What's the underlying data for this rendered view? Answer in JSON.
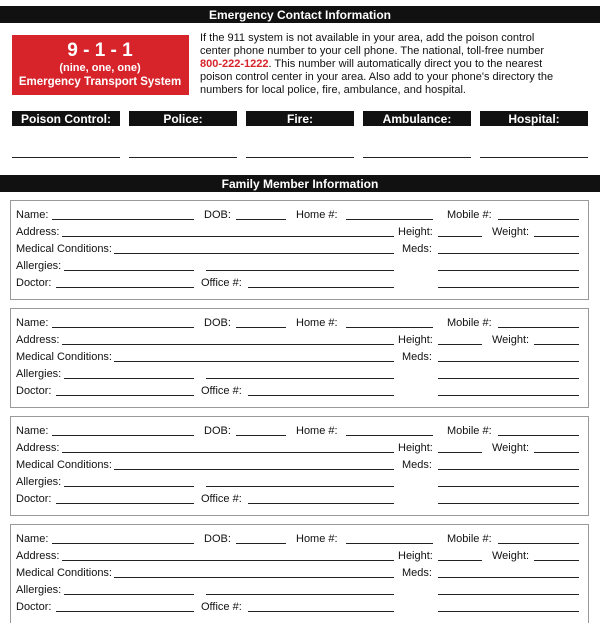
{
  "header": {
    "title": "Emergency Contact Information"
  },
  "emergency": {
    "number": "9 - 1 - 1",
    "words": "(nine, one, one)",
    "system": "Emergency Transport System"
  },
  "notice": {
    "lines_before": [
      "If the 911 system is not available in your area, add the poison control",
      "center phone number to your cell phone. The national, toll-free number"
    ],
    "phone": "800-222-1222",
    "phone_rest": ". This number will automatically direct you to the nearest",
    "lines_after": [
      "poison control center in your area. Also add to your phone's directory the",
      "numbers for local police, fire, ambulance, and hospital."
    ]
  },
  "contacts": [
    "Poison Control:",
    "Police:",
    "Fire:",
    "Ambulance:",
    "Hospital:"
  ],
  "family": {
    "title": "Family Member Information",
    "members": [
      {
        "name": "Name:",
        "dob": "DOB:",
        "home": "Home #:",
        "mobile": "Mobile #:",
        "address": "Address:",
        "height": "Height:",
        "weight": "Weight:",
        "medical": "Medical Conditions:",
        "meds": "Meds:",
        "allergies": "Allergies:",
        "doctor": "Doctor:",
        "office": "Office #:"
      },
      {
        "name": "Name:",
        "dob": "DOB:",
        "home": "Home #:",
        "mobile": "Mobile #:",
        "address": "Address:",
        "height": "Height:",
        "weight": "Weight:",
        "medical": "Medical Conditions:",
        "meds": "Meds:",
        "allergies": "Allergies:",
        "doctor": "Doctor:",
        "office": "Office #:"
      },
      {
        "name": "Name:",
        "dob": "DOB:",
        "home": "Home #:",
        "mobile": "Mobile #:",
        "address": "Address:",
        "height": "Height:",
        "weight": "Weight:",
        "medical": "Medical Conditions:",
        "meds": "Meds:",
        "allergies": "Allergies:",
        "doctor": "Doctor:",
        "office": "Office #:"
      },
      {
        "name": "Name:",
        "dob": "DOB:",
        "home": "Home #:",
        "mobile": "Mobile #:",
        "address": "Address:",
        "height": "Height:",
        "weight": "Weight:",
        "medical": "Medical Conditions:",
        "meds": "Meds:",
        "allergies": "Allergies:",
        "doctor": "Doctor:",
        "office": "Office #:"
      }
    ]
  }
}
